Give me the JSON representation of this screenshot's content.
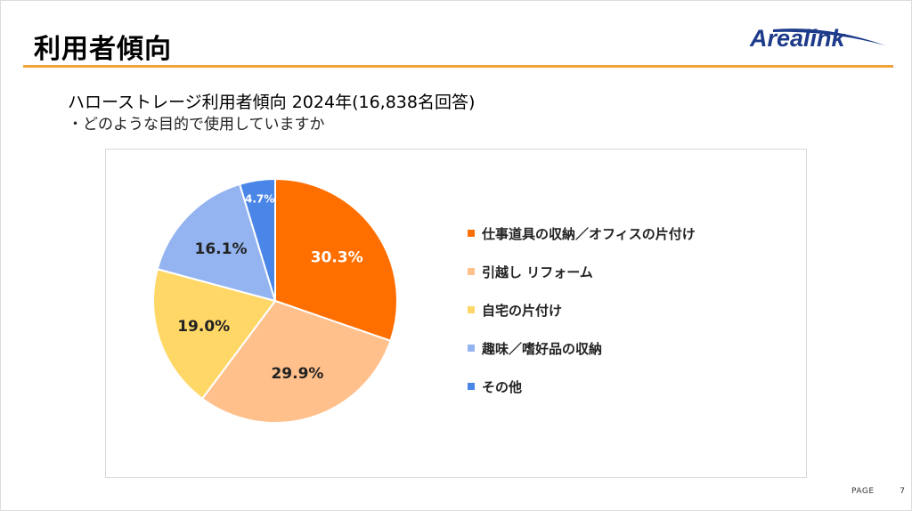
{
  "header": {
    "title": "利用者傾向",
    "logo_text": "Arealink",
    "logo_color": "#1d3b8a",
    "rule_color": "#f0a23a"
  },
  "subtitle": "ハローストレージ利用者傾向 2024年(16,838名回答)",
  "question": "・どのような目的で使用していますか",
  "chart_data": {
    "type": "pie",
    "title": "",
    "categories": [
      "仕事道具の収納／オフィスの片付け",
      "引越し リフォーム",
      "自宅の片付け",
      "趣味／嗜好品の収納",
      "その他"
    ],
    "values": [
      30.3,
      29.9,
      19.0,
      16.1,
      4.7
    ],
    "data_labels": [
      "30.3%",
      "29.9%",
      "19.0%",
      "16.1%",
      "4.7%"
    ],
    "colors": [
      "#ff6f00",
      "#ffc08c",
      "#ffd766",
      "#93b4f0",
      "#4a86e8"
    ],
    "label_colors": [
      "#ffffff",
      "#222222",
      "#222222",
      "#222222",
      "#ffffff"
    ],
    "start_angle": "top",
    "direction": "clockwise",
    "legend_position": "right"
  },
  "footer": {
    "page_label": "PAGE",
    "page_number": "7"
  }
}
